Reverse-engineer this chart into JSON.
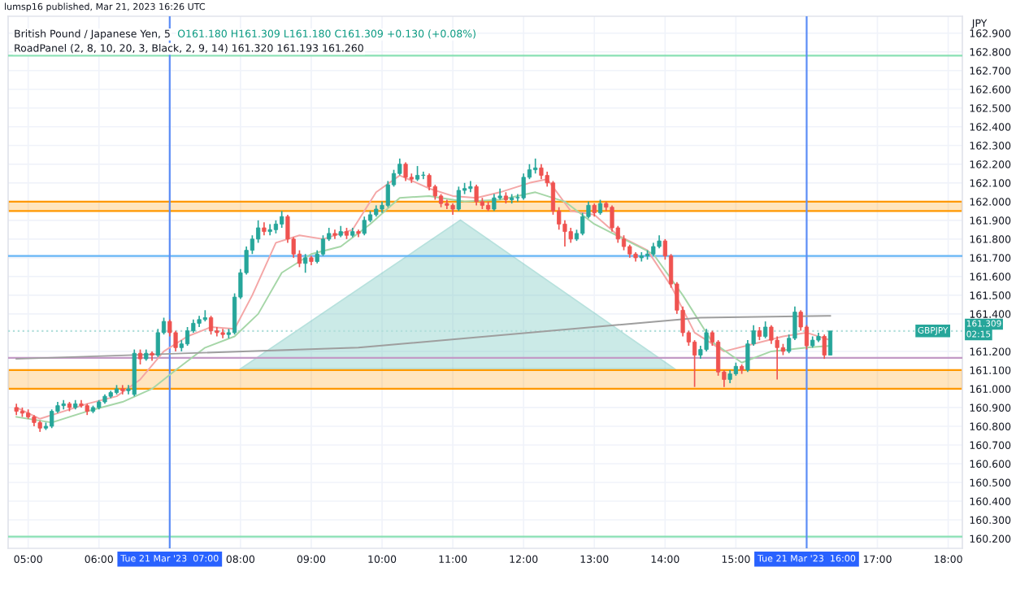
{
  "chart_data": {
    "type": "candlestick",
    "title": "British Pound / Japanese Yen, 5",
    "ylabel": "JPY",
    "annotations": [
      "lumsp16 published, Mar 21, 2023 16:26 UTC",
      "O161.180 H161.309 L161.180 C161.309 +0.130 (+0.08%)",
      "RoadPanel (2, 8, 10, 20, 3, Black, 2, 9, 14) 161.320 161.193 161.260",
      "161.309",
      "02:15"
    ],
    "colors": [
      "#ef5350",
      "#ef5350",
      "#ef5350",
      "#ef5350",
      "#ef5350",
      "#26a69a",
      "#26a69a",
      "#26a69a",
      "#26a69a",
      "#ef5350",
      "#26a69a",
      "#ef5350",
      "#ef5350",
      "#26a69a",
      "#26a69a",
      "#26a69a",
      "#26a69a",
      "#26a69a",
      "#ef5350",
      "#26a69a",
      "#26a69a",
      "#ef5350",
      "#26a69a",
      "#ef5350",
      "#26a69a",
      "#26a69a",
      "#ef5350",
      "#ef5350",
      "#26a69a",
      "#26a69a",
      "#26a69a",
      "#26a69a",
      "#26a69a",
      "#ef5350",
      "#ef5350",
      "#ef5350",
      "#26a69a",
      "#26a69a",
      "#26a69a",
      "#26a69a",
      "#26a69a",
      "#26a69a",
      "#ef5350",
      "#26a69a",
      "#26a69a",
      "#26a69a",
      "#ef5350",
      "#ef5350",
      "#ef5350",
      "#26a69a",
      "#ef5350",
      "#26a69a",
      "#26a69a",
      "#26a69a",
      "#ef5350",
      "#26a69a",
      "#ef5350",
      "#26a69a",
      "#ef5350",
      "#26a69a",
      "#26a69a",
      "#26a69a",
      "#26a69a",
      "#26a69a",
      "#26a69a",
      "#26a69a",
      "#ef5350",
      "#ef5350",
      "#26a69a",
      "#26a69a",
      "#ef5350",
      "#ef5350",
      "#ef5350",
      "#ef5350",
      "#ef5350",
      "#26a69a",
      "#26a69a",
      "#26a69a",
      "#ef5350",
      "#ef5350",
      "#ef5350",
      "#26a69a",
      "#26a69a",
      "#ef5350",
      "#26a69a",
      "#26a69a",
      "#26a69a",
      "#26a69a",
      "#26a69a",
      "#ef5350",
      "#ef5350",
      "#ef5350",
      "#ef5350",
      "#ef5350",
      "#ef5350",
      "#26a69a",
      "#26a69a",
      "#26a69a",
      "#ef5350",
      "#26a69a",
      "#ef5350",
      "#ef5350",
      "#ef5350",
      "#ef5350",
      "#ef5350",
      "#ef5350",
      "#26a69a",
      "#26a69a",
      "#26a69a",
      "#26a69a",
      "#ef5350",
      "#ef5350",
      "#ef5350",
      "#ef5350",
      "#ef5350",
      "#ef5350",
      "#26a69a",
      "#26a69a",
      "#ef5350",
      "#ef5350",
      "#ef5350",
      "#26a69a",
      "#26a69a",
      "#ef5350",
      "#26a69a",
      "#26a69a",
      "#ef5350",
      "#26a69a",
      "#ef5350",
      "#ef5350",
      "#ef5350",
      "#26a69a",
      "#26a69a",
      "#ef5350",
      "#ef5350",
      "#26a69a",
      "#26a69a",
      "#ef5350",
      "#26a69a"
    ],
    "x": [
      "2023-03-21T04:50",
      "2023-03-21T04:55",
      "2023-03-21T05:00",
      "2023-03-21T05:05",
      "2023-03-21T05:10",
      "2023-03-21T05:15",
      "2023-03-21T05:20",
      "2023-03-21T05:25",
      "2023-03-21T05:30",
      "2023-03-21T05:35",
      "2023-03-21T05:40",
      "2023-03-21T05:45",
      "2023-03-21T05:50",
      "2023-03-21T05:55",
      "2023-03-21T06:00",
      "2023-03-21T06:05",
      "2023-03-21T06:10",
      "2023-03-21T06:15",
      "2023-03-21T06:20",
      "2023-03-21T06:25",
      "2023-03-21T06:30",
      "2023-03-21T06:35",
      "2023-03-21T06:40",
      "2023-03-21T06:45",
      "2023-03-21T06:50",
      "2023-03-21T06:55",
      "2023-03-21T07:00",
      "2023-03-21T07:05",
      "2023-03-21T07:10",
      "2023-03-21T07:15",
      "2023-03-21T07:20",
      "2023-03-21T07:25",
      "2023-03-21T07:30",
      "2023-03-21T07:35",
      "2023-03-21T07:40",
      "2023-03-21T07:45",
      "2023-03-21T07:50",
      "2023-03-21T07:55",
      "2023-03-21T08:00",
      "2023-03-21T08:05",
      "2023-03-21T08:10",
      "2023-03-21T08:15",
      "2023-03-21T08:20",
      "2023-03-21T08:25",
      "2023-03-21T08:30",
      "2023-03-21T08:35",
      "2023-03-21T08:40",
      "2023-03-21T08:45",
      "2023-03-21T08:50",
      "2023-03-21T08:55",
      "2023-03-21T09:00",
      "2023-03-21T09:05",
      "2023-03-21T09:10",
      "2023-03-21T09:15",
      "2023-03-21T09:20",
      "2023-03-21T09:25",
      "2023-03-21T09:30",
      "2023-03-21T09:35",
      "2023-03-21T09:40",
      "2023-03-21T09:45",
      "2023-03-21T09:50",
      "2023-03-21T09:55",
      "2023-03-21T10:00",
      "2023-03-21T10:05",
      "2023-03-21T10:10",
      "2023-03-21T10:15",
      "2023-03-21T10:20",
      "2023-03-21T10:25",
      "2023-03-21T10:30",
      "2023-03-21T10:35",
      "2023-03-21T10:40",
      "2023-03-21T10:45",
      "2023-03-21T10:50",
      "2023-03-21T10:55",
      "2023-03-21T11:00",
      "2023-03-21T11:05",
      "2023-03-21T11:10",
      "2023-03-21T11:15",
      "2023-03-21T11:20",
      "2023-03-21T11:25",
      "2023-03-21T11:30",
      "2023-03-21T11:35",
      "2023-03-21T11:40",
      "2023-03-21T11:45",
      "2023-03-21T11:50",
      "2023-03-21T11:55",
      "2023-03-21T12:00",
      "2023-03-21T12:05",
      "2023-03-21T12:10",
      "2023-03-21T12:15",
      "2023-03-21T12:20",
      "2023-03-21T12:25",
      "2023-03-21T12:30",
      "2023-03-21T12:35",
      "2023-03-21T12:40",
      "2023-03-21T12:45",
      "2023-03-21T12:50",
      "2023-03-21T12:55",
      "2023-03-21T13:00",
      "2023-03-21T13:05",
      "2023-03-21T13:10",
      "2023-03-21T13:15",
      "2023-03-21T13:20",
      "2023-03-21T13:25",
      "2023-03-21T13:30",
      "2023-03-21T13:35",
      "2023-03-21T13:40",
      "2023-03-21T13:45",
      "2023-03-21T13:50",
      "2023-03-21T13:55",
      "2023-03-21T14:00",
      "2023-03-21T14:05",
      "2023-03-21T14:10",
      "2023-03-21T14:15",
      "2023-03-21T14:20",
      "2023-03-21T14:25",
      "2023-03-21T14:30",
      "2023-03-21T14:35",
      "2023-03-21T14:40",
      "2023-03-21T14:45",
      "2023-03-21T14:50",
      "2023-03-21T14:55",
      "2023-03-21T15:00",
      "2023-03-21T15:05",
      "2023-03-21T15:10",
      "2023-03-21T15:15",
      "2023-03-21T15:20",
      "2023-03-21T15:25",
      "2023-03-21T15:30",
      "2023-03-21T15:35",
      "2023-03-21T15:40",
      "2023-03-21T15:45",
      "2023-03-21T15:50",
      "2023-03-21T15:55",
      "2023-03-21T16:00",
      "2023-03-21T16:05",
      "2023-03-21T16:10",
      "2023-03-21T16:15",
      "2023-03-21T16:20"
    ],
    "ohlc": [
      [
        160.9,
        160.92,
        160.86,
        160.88
      ],
      [
        160.88,
        160.9,
        160.85,
        160.87
      ],
      [
        160.87,
        160.89,
        160.84,
        160.85
      ],
      [
        160.85,
        160.86,
        160.8,
        160.82
      ],
      [
        160.82,
        160.83,
        160.77,
        160.79
      ],
      [
        160.79,
        160.82,
        160.78,
        160.8
      ],
      [
        160.8,
        160.89,
        160.79,
        160.88
      ],
      [
        160.88,
        160.93,
        160.87,
        160.91
      ],
      [
        160.91,
        160.94,
        160.89,
        160.92
      ],
      [
        160.92,
        160.93,
        160.88,
        160.9
      ],
      [
        160.9,
        160.94,
        160.89,
        160.92
      ],
      [
        160.92,
        160.94,
        160.9,
        160.91
      ],
      [
        160.91,
        160.92,
        160.86,
        160.88
      ],
      [
        160.88,
        160.91,
        160.87,
        160.9
      ],
      [
        160.9,
        160.94,
        160.89,
        160.93
      ],
      [
        160.93,
        160.97,
        160.92,
        160.96
      ],
      [
        160.96,
        160.99,
        160.95,
        160.98
      ],
      [
        160.98,
        161.02,
        160.97,
        161.0
      ],
      [
        161.0,
        161.02,
        160.97,
        160.99
      ],
      [
        160.99,
        161.02,
        160.97,
        161.0
      ],
      [
        160.97,
        161.21,
        160.96,
        161.19
      ],
      [
        161.19,
        161.21,
        161.13,
        161.16
      ],
      [
        161.16,
        161.21,
        161.15,
        161.19
      ],
      [
        161.19,
        161.2,
        161.15,
        161.18
      ],
      [
        161.18,
        161.32,
        161.17,
        161.3
      ],
      [
        161.3,
        161.38,
        161.29,
        161.36
      ],
      [
        161.36,
        161.37,
        161.28,
        161.3
      ],
      [
        161.3,
        161.31,
        161.2,
        161.22
      ],
      [
        161.22,
        161.26,
        161.2,
        161.24
      ],
      [
        161.24,
        161.33,
        161.23,
        161.31
      ],
      [
        161.31,
        161.37,
        161.3,
        161.35
      ],
      [
        161.35,
        161.39,
        161.33,
        161.37
      ],
      [
        161.37,
        161.42,
        161.36,
        161.38
      ],
      [
        161.38,
        161.39,
        161.29,
        161.31
      ],
      [
        161.31,
        161.33,
        161.28,
        161.3
      ],
      [
        161.3,
        161.32,
        161.27,
        161.29
      ],
      [
        161.29,
        161.32,
        161.27,
        161.3
      ],
      [
        161.3,
        161.51,
        161.29,
        161.49
      ],
      [
        161.49,
        161.64,
        161.48,
        161.62
      ],
      [
        161.62,
        161.76,
        161.61,
        161.74
      ],
      [
        161.74,
        161.82,
        161.72,
        161.8
      ],
      [
        161.8,
        161.9,
        161.78,
        161.86
      ],
      [
        161.86,
        161.89,
        161.82,
        161.84
      ],
      [
        161.84,
        161.88,
        161.82,
        161.85
      ],
      [
        161.85,
        161.9,
        161.83,
        161.88
      ],
      [
        161.88,
        161.95,
        161.86,
        161.92
      ],
      [
        161.92,
        161.93,
        161.78,
        161.8
      ],
      [
        161.8,
        161.81,
        161.7,
        161.72
      ],
      [
        161.72,
        161.74,
        161.65,
        161.67
      ],
      [
        161.67,
        161.72,
        161.62,
        161.7
      ],
      [
        161.7,
        161.71,
        161.66,
        161.68
      ],
      [
        161.68,
        161.74,
        161.67,
        161.72
      ],
      [
        161.72,
        161.82,
        161.71,
        161.8
      ],
      [
        161.8,
        161.86,
        161.79,
        161.83
      ],
      [
        161.83,
        161.85,
        161.8,
        161.82
      ],
      [
        161.82,
        161.87,
        161.81,
        161.84
      ],
      [
        161.84,
        161.86,
        161.8,
        161.82
      ],
      [
        161.82,
        161.86,
        161.81,
        161.84
      ],
      [
        161.84,
        161.85,
        161.81,
        161.83
      ],
      [
        161.83,
        161.92,
        161.82,
        161.9
      ],
      [
        161.9,
        161.95,
        161.89,
        161.93
      ],
      [
        161.93,
        161.98,
        161.92,
        161.96
      ],
      [
        161.96,
        162.0,
        161.94,
        161.98
      ],
      [
        161.98,
        162.11,
        161.97,
        162.09
      ],
      [
        162.09,
        162.17,
        162.08,
        162.15
      ],
      [
        162.15,
        162.23,
        162.14,
        162.2
      ],
      [
        162.2,
        162.21,
        162.11,
        162.13
      ],
      [
        162.13,
        162.15,
        162.1,
        162.12
      ],
      [
        162.12,
        162.19,
        162.11,
        162.14
      ],
      [
        162.14,
        162.16,
        162.12,
        162.14
      ],
      [
        162.14,
        162.15,
        162.06,
        162.08
      ],
      [
        162.08,
        162.09,
        162.01,
        162.03
      ],
      [
        162.03,
        162.04,
        161.97,
        161.99
      ],
      [
        161.99,
        162.01,
        161.96,
        161.98
      ],
      [
        161.98,
        161.99,
        161.93,
        161.96
      ],
      [
        161.96,
        162.08,
        161.95,
        162.06
      ],
      [
        162.06,
        162.1,
        162.04,
        162.07
      ],
      [
        162.07,
        162.11,
        162.05,
        162.08
      ],
      [
        162.08,
        162.09,
        161.98,
        162.0
      ],
      [
        162.0,
        162.02,
        161.96,
        161.98
      ],
      [
        161.98,
        162.0,
        161.95,
        161.96
      ],
      [
        161.96,
        162.04,
        161.95,
        162.02
      ],
      [
        162.02,
        162.07,
        162.01,
        162.03
      ],
      [
        162.03,
        162.05,
        161.99,
        162.01
      ],
      [
        162.01,
        162.04,
        161.99,
        162.02
      ],
      [
        162.02,
        162.04,
        162.0,
        162.02
      ],
      [
        162.02,
        162.15,
        162.01,
        162.13
      ],
      [
        162.13,
        162.2,
        162.12,
        162.17
      ],
      [
        162.17,
        162.23,
        162.15,
        162.18
      ],
      [
        162.18,
        162.2,
        162.12,
        162.14
      ],
      [
        162.14,
        162.16,
        162.08,
        162.1
      ],
      [
        162.1,
        162.11,
        161.93,
        161.95
      ],
      [
        161.95,
        161.97,
        161.85,
        161.88
      ],
      [
        161.88,
        161.9,
        161.76,
        161.84
      ],
      [
        161.84,
        161.86,
        161.78,
        161.8
      ],
      [
        161.8,
        161.85,
        161.79,
        161.83
      ],
      [
        161.83,
        161.94,
        161.82,
        161.92
      ],
      [
        161.92,
        162.0,
        161.91,
        161.98
      ],
      [
        161.98,
        161.99,
        161.92,
        161.94
      ],
      [
        161.94,
        162.01,
        161.93,
        161.99
      ],
      [
        161.99,
        162.0,
        161.95,
        161.97
      ],
      [
        161.97,
        161.98,
        161.84,
        161.86
      ],
      [
        161.86,
        161.87,
        161.78,
        161.8
      ],
      [
        161.8,
        161.82,
        161.74,
        161.76
      ],
      [
        161.76,
        161.77,
        161.7,
        161.72
      ],
      [
        161.72,
        161.73,
        161.68,
        161.7
      ],
      [
        161.7,
        161.73,
        161.68,
        161.71
      ],
      [
        161.71,
        161.74,
        161.69,
        161.72
      ],
      [
        161.72,
        161.78,
        161.71,
        161.76
      ],
      [
        161.76,
        161.82,
        161.75,
        161.79
      ],
      [
        161.79,
        161.8,
        161.69,
        161.71
      ],
      [
        161.71,
        161.72,
        161.54,
        161.56
      ],
      [
        161.56,
        161.57,
        161.4,
        161.42
      ],
      [
        161.42,
        161.44,
        161.28,
        161.3
      ],
      [
        161.3,
        161.31,
        161.23,
        161.25
      ],
      [
        161.25,
        161.26,
        161.01,
        161.18
      ],
      [
        161.18,
        161.23,
        161.16,
        161.21
      ],
      [
        161.21,
        161.32,
        161.2,
        161.3
      ],
      [
        161.3,
        161.31,
        161.23,
        161.25
      ],
      [
        161.25,
        161.26,
        161.07,
        161.09
      ],
      [
        161.09,
        161.1,
        161.01,
        161.05
      ],
      [
        161.05,
        161.1,
        161.03,
        161.08
      ],
      [
        161.08,
        161.14,
        161.07,
        161.12
      ],
      [
        161.12,
        161.13,
        161.08,
        161.1
      ],
      [
        161.1,
        161.26,
        161.09,
        161.24
      ],
      [
        161.24,
        161.34,
        161.23,
        161.31
      ],
      [
        161.31,
        161.33,
        161.26,
        161.28
      ],
      [
        161.28,
        161.36,
        161.27,
        161.33
      ],
      [
        161.33,
        161.34,
        161.24,
        161.26
      ],
      [
        161.26,
        161.28,
        161.05,
        161.22
      ],
      [
        161.22,
        161.24,
        161.18,
        161.2
      ],
      [
        161.2,
        161.29,
        161.19,
        161.27
      ],
      [
        161.27,
        161.44,
        161.26,
        161.41
      ],
      [
        161.41,
        161.42,
        161.31,
        161.33
      ],
      [
        161.33,
        161.34,
        161.21,
        161.23
      ],
      [
        161.23,
        161.28,
        161.22,
        161.26
      ],
      [
        161.26,
        161.3,
        161.25,
        161.28
      ],
      [
        161.28,
        161.29,
        161.16,
        161.18
      ],
      [
        161.18,
        161.309,
        161.18,
        161.309
      ]
    ],
    "series": [
      {
        "type": "line",
        "color": "#f4a6a6",
        "x": [
          "2023-03-21T04:50",
          "2023-03-21T05:10",
          "2023-03-21T05:30",
          "2023-03-21T05:50",
          "2023-03-21T06:15",
          "2023-03-21T06:35",
          "2023-03-21T06:55",
          "2023-03-21T07:15",
          "2023-03-21T07:35",
          "2023-03-21T07:55",
          "2023-03-21T08:10",
          "2023-03-21T08:30",
          "2023-03-21T08:50",
          "2023-03-21T09:10",
          "2023-03-21T09:35",
          "2023-03-21T09:55",
          "2023-03-21T10:15",
          "2023-03-21T10:40",
          "2023-03-21T11:00",
          "2023-03-21T11:20",
          "2023-03-21T11:40",
          "2023-03-21T12:05",
          "2023-03-21T12:20",
          "2023-03-21T12:40",
          "2023-03-21T13:00",
          "2023-03-21T13:20",
          "2023-03-21T13:45",
          "2023-03-21T14:05",
          "2023-03-21T14:25",
          "2023-03-21T14:50",
          "2023-03-21T15:15",
          "2023-03-21T15:40",
          "2023-03-21T16:00",
          "2023-03-21T16:20"
        ],
        "values": [
          160.9,
          160.84,
          160.88,
          160.92,
          160.96,
          161.05,
          161.2,
          161.28,
          161.33,
          161.32,
          161.5,
          161.78,
          161.82,
          161.8,
          161.85,
          162.05,
          162.14,
          162.07,
          162.03,
          162.02,
          162.05,
          162.1,
          162.12,
          161.95,
          161.93,
          161.82,
          161.74,
          161.55,
          161.3,
          161.2,
          161.24,
          161.28,
          161.3,
          161.26
        ]
      },
      {
        "type": "line",
        "color": "#a5d6a7",
        "x": [
          "2023-03-21T04:50",
          "2023-03-21T05:20",
          "2023-03-21T05:50",
          "2023-03-21T06:20",
          "2023-03-21T06:45",
          "2023-03-21T07:05",
          "2023-03-21T07:30",
          "2023-03-21T07:55",
          "2023-03-21T08:15",
          "2023-03-21T08:35",
          "2023-03-21T09:00",
          "2023-03-21T09:25",
          "2023-03-21T09:50",
          "2023-03-21T10:15",
          "2023-03-21T10:40",
          "2023-03-21T11:10",
          "2023-03-21T11:40",
          "2023-03-21T12:10",
          "2023-03-21T12:35",
          "2023-03-21T13:00",
          "2023-03-21T13:25",
          "2023-03-21T13:50",
          "2023-03-21T14:15",
          "2023-03-21T14:40",
          "2023-03-21T15:05",
          "2023-03-21T15:30",
          "2023-03-21T16:00",
          "2023-03-21T16:20"
        ],
        "values": [
          160.85,
          160.82,
          160.88,
          160.93,
          161.0,
          161.1,
          161.22,
          161.28,
          161.4,
          161.62,
          161.72,
          161.76,
          161.88,
          162.02,
          162.03,
          162.0,
          162.01,
          162.05,
          162.0,
          161.88,
          161.8,
          161.72,
          161.5,
          161.25,
          161.14,
          161.2,
          161.22,
          161.23
        ]
      },
      {
        "type": "line",
        "color": "#9e9e9e",
        "x": [
          "2023-03-21T04:50",
          "2023-03-21T09:40",
          "2023-03-21T14:30",
          "2023-03-21T16:20"
        ],
        "values": [
          161.16,
          161.22,
          161.38,
          161.39
        ]
      }
    ],
    "bands": [
      {
        "axis": "y",
        "from": 161.95,
        "to": 162.0,
        "color": "#ff9800"
      },
      {
        "axis": "y",
        "from": 161.0,
        "to": 161.1,
        "color": "#ff9800"
      }
    ],
    "ref_lines": [
      {
        "axis": "y",
        "value": 162.78,
        "color": "#89e0b4",
        "line_style": "solid"
      },
      {
        "axis": "y",
        "value": 161.71,
        "color": "#64b5f6",
        "line_style": "solid"
      },
      {
        "axis": "y",
        "value": 161.165,
        "color": "#c39ac6",
        "line_style": "solid"
      },
      {
        "axis": "y",
        "value": 160.21,
        "color": "#89e0b4",
        "line_style": "solid"
      },
      {
        "axis": "y",
        "value": 161.309,
        "color": "#b2dfdb",
        "line_style": "dotted",
        "label": "GBPJPY"
      },
      {
        "axis": "x",
        "value": "2023-03-21T07:00",
        "color": "#5c8df6",
        "line_style": "solid",
        "label": "Tue 21 Mar '23  07:00"
      },
      {
        "axis": "x",
        "value": "2023-03-21T16:00",
        "color": "#5c8df6",
        "line_style": "solid",
        "label": "Tue 21 Mar '23  16:00"
      }
    ],
    "xlim": [
      "2023-03-21T04:43",
      "2023-03-21T18:12"
    ],
    "ylim": [
      160.148,
      162.99
    ],
    "xticks": [
      {
        "value": "2023-03-21T05:00",
        "label": "05:00"
      },
      {
        "value": "2023-03-21T06:00",
        "label": "06:00"
      },
      {
        "value": "2023-03-21T08:00",
        "label": "08:00"
      },
      {
        "value": "2023-03-21T09:00",
        "label": "09:00"
      },
      {
        "value": "2023-03-21T10:00",
        "label": "10:00"
      },
      {
        "value": "2023-03-21T11:00",
        "label": "11:00"
      },
      {
        "value": "2023-03-21T12:00",
        "label": "12:00"
      },
      {
        "value": "2023-03-21T13:00",
        "label": "13:00"
      },
      {
        "value": "2023-03-21T14:00",
        "label": "14:00"
      },
      {
        "value": "2023-03-21T15:00",
        "label": "15:00"
      },
      {
        "value": "2023-03-21T17:00",
        "label": "17:00"
      },
      {
        "value": "2023-03-21T18:00",
        "label": "18:00"
      }
    ],
    "yticks": [
      {
        "value": 160.2,
        "label": "160.200"
      },
      {
        "value": 160.3,
        "label": "160.300"
      },
      {
        "value": 160.4,
        "label": "160.400"
      },
      {
        "value": 160.5,
        "label": "160.500"
      },
      {
        "value": 160.6,
        "label": "160.600"
      },
      {
        "value": 160.7,
        "label": "160.700"
      },
      {
        "value": 160.8,
        "label": "160.800"
      },
      {
        "value": 160.9,
        "label": "160.900"
      },
      {
        "value": 161.0,
        "label": "161.000"
      },
      {
        "value": 161.1,
        "label": "161.100"
      },
      {
        "value": 161.2,
        "label": "161.200"
      },
      {
        "value": 161.4,
        "label": "161.400"
      },
      {
        "value": 161.5,
        "label": "161.500"
      },
      {
        "value": 161.6,
        "label": "161.600"
      },
      {
        "value": 161.7,
        "label": "161.700"
      },
      {
        "value": 161.8,
        "label": "161.800"
      },
      {
        "value": 161.9,
        "label": "161.900"
      },
      {
        "value": 162.0,
        "label": "162.000"
      },
      {
        "value": 162.1,
        "label": "162.100"
      },
      {
        "value": 162.2,
        "label": "162.200"
      },
      {
        "value": 162.3,
        "label": "162.300"
      },
      {
        "value": 162.4,
        "label": "162.400"
      },
      {
        "value": 162.5,
        "label": "162.500"
      },
      {
        "value": 162.6,
        "label": "162.600"
      },
      {
        "value": 162.7,
        "label": "162.700"
      },
      {
        "value": 162.8,
        "label": "162.800"
      },
      {
        "value": 162.9,
        "label": "162.900"
      }
    ],
    "grid": true
  }
}
